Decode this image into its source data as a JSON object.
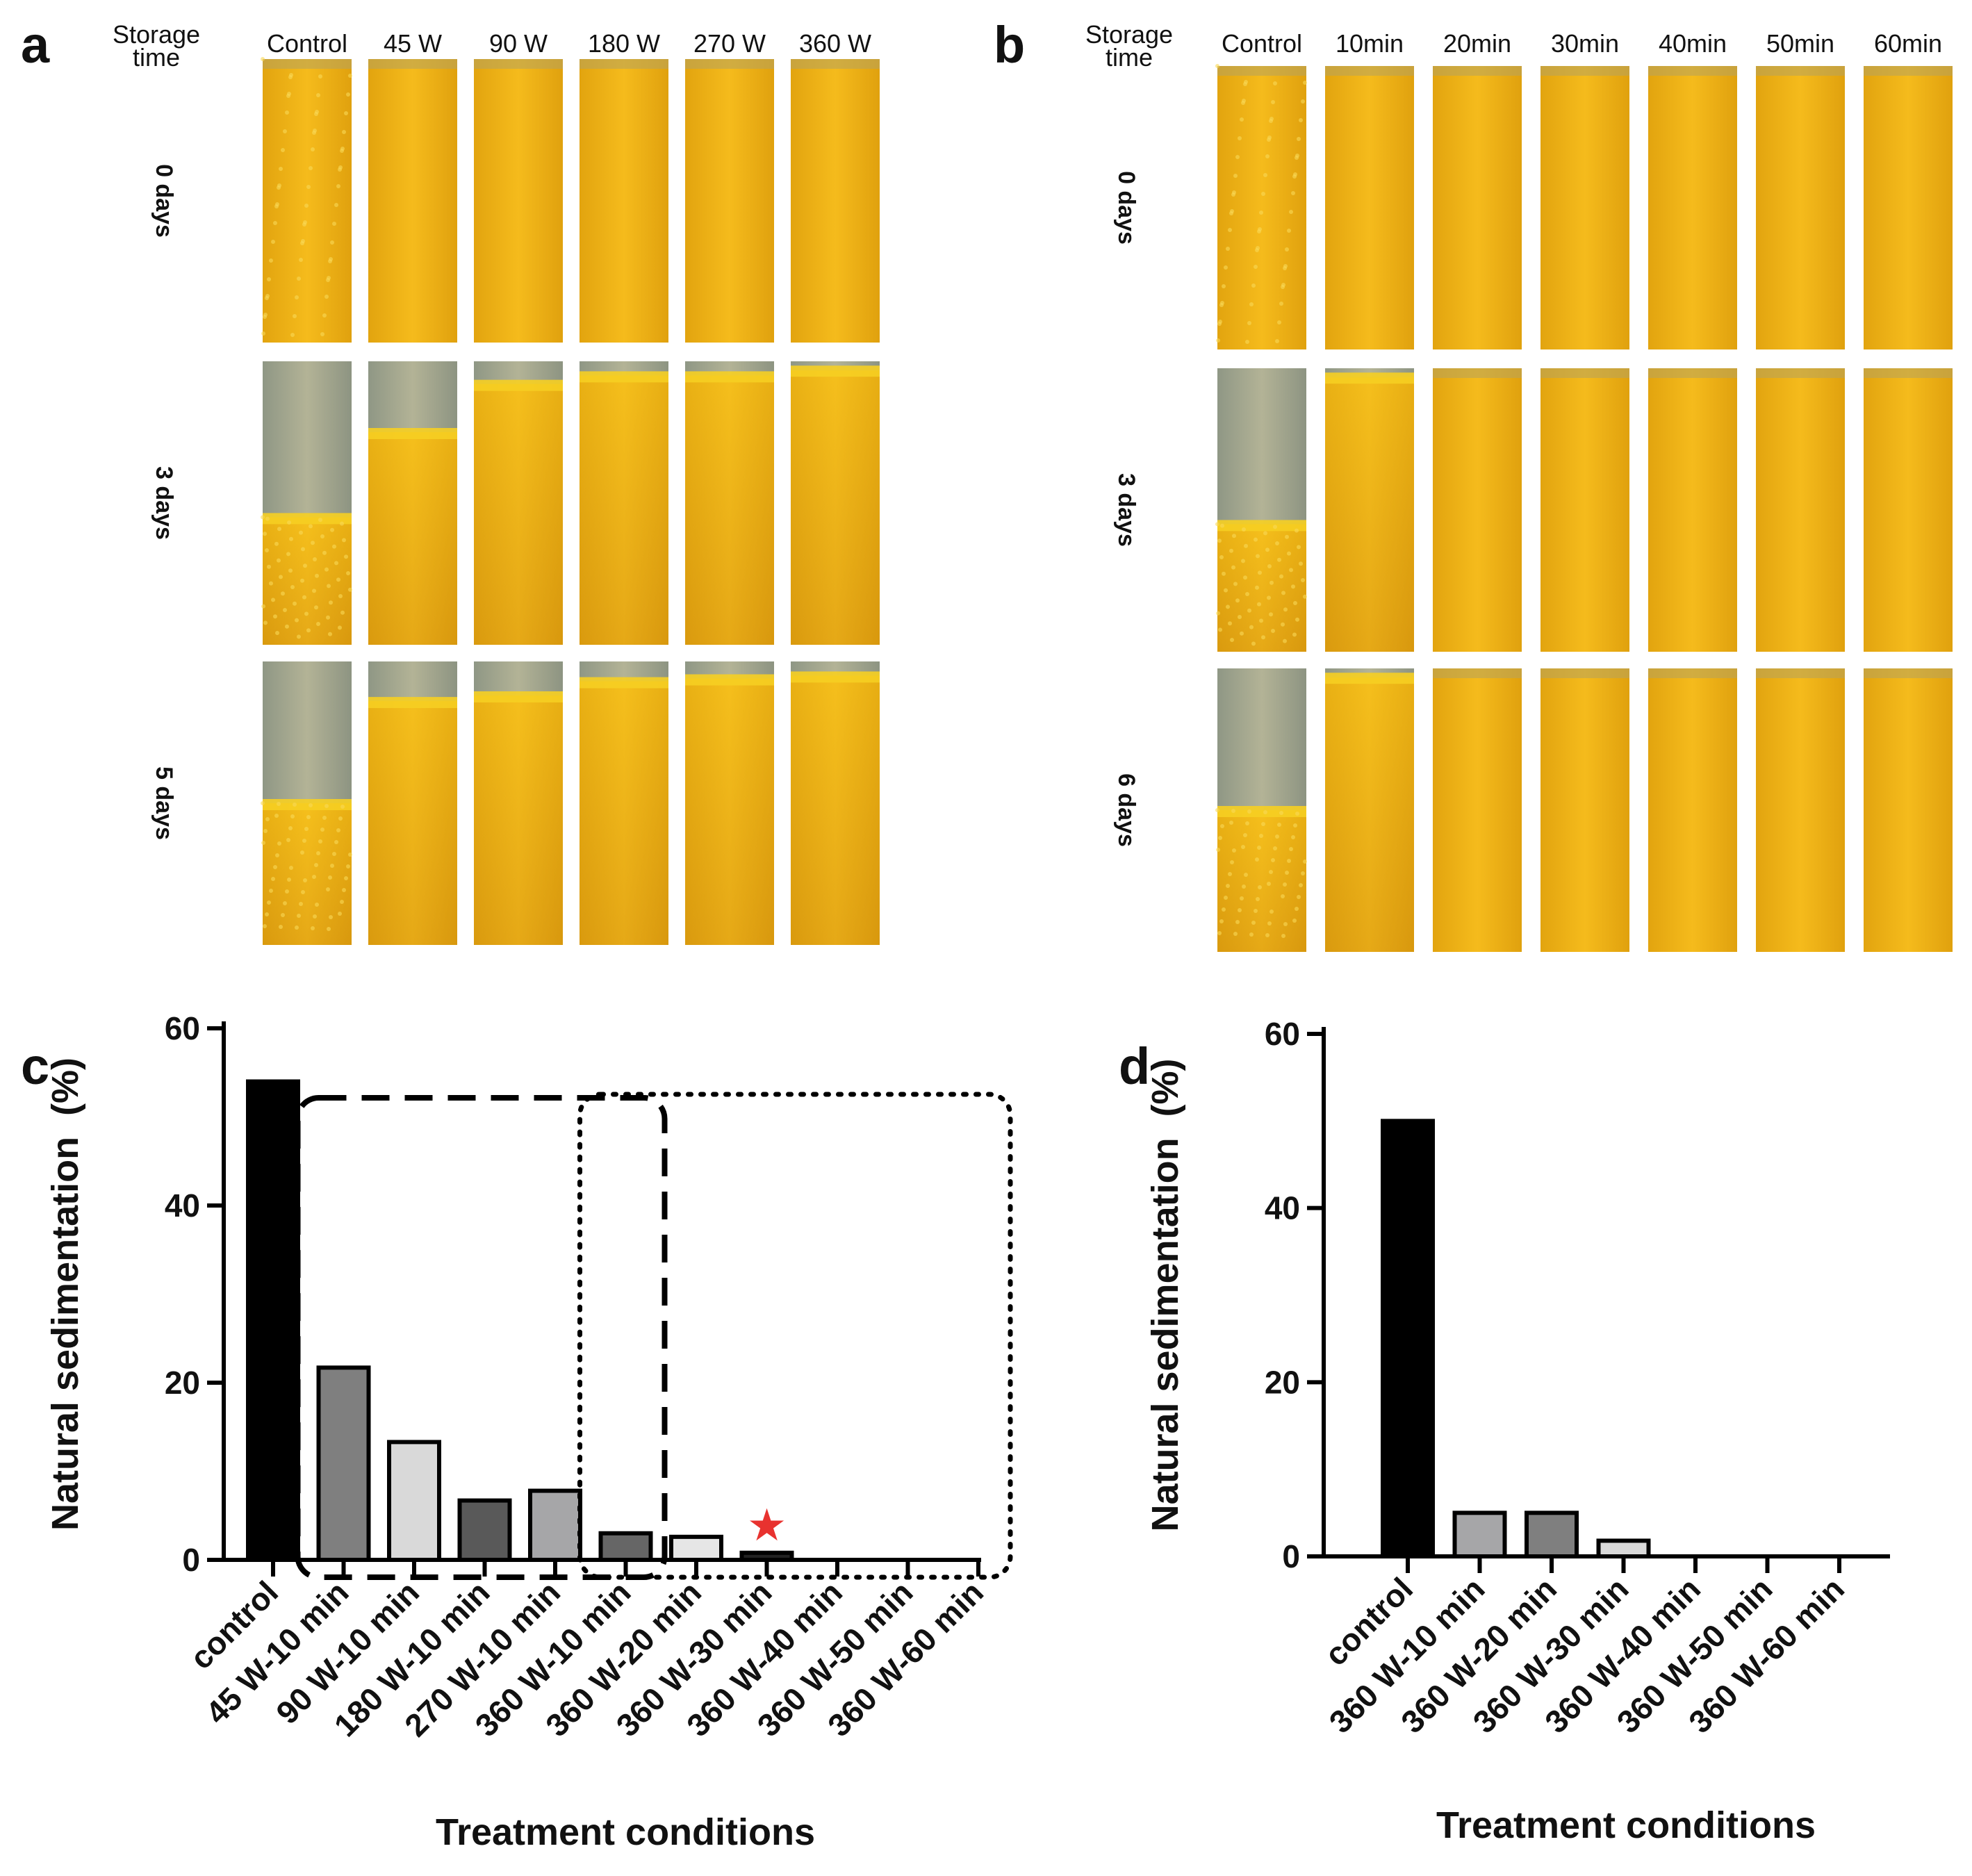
{
  "panels": {
    "a": {
      "label": "a",
      "corner_label": [
        "Storage",
        "time"
      ],
      "columns": [
        "Control",
        "45 W",
        "90 W",
        "180 W",
        "270 W",
        "360 W"
      ],
      "rows": [
        "0 days",
        "3 days",
        "5 days"
      ],
      "sediment_fraction": [
        [
          0,
          0,
          0,
          0,
          0,
          0
        ],
        [
          0.55,
          0.25,
          0.08,
          0.05,
          0.05,
          0.03
        ],
        [
          0.5,
          0.14,
          0.12,
          0.07,
          0.06,
          0.05
        ]
      ]
    },
    "b": {
      "label": "b",
      "corner_label": [
        "Storage",
        "time"
      ],
      "columns": [
        "Control",
        "10min",
        "20min",
        "30min",
        "40min",
        "50min",
        "60min"
      ],
      "rows": [
        "0 days",
        "3 days",
        "6 days"
      ],
      "sediment_fraction": [
        [
          0,
          0,
          0,
          0,
          0,
          0,
          0
        ],
        [
          0.55,
          0.03,
          0,
          0,
          0,
          0,
          0
        ],
        [
          0.5,
          0.03,
          0,
          0,
          0,
          0,
          0
        ]
      ]
    }
  },
  "colors": {
    "juice_light": "#f2b517",
    "juice_dark": "#d79a0c",
    "serum": "#9ea58e",
    "star": "#e8322f"
  },
  "chart_data": [
    {
      "panel": "c",
      "type": "bar",
      "title": "",
      "ylabel": "Natural sedimentation  (%)",
      "xlabel": "Treatment conditions",
      "ylim": [
        0,
        60
      ],
      "yticks": [
        0,
        20,
        40,
        60
      ],
      "categories": [
        "control",
        "45 W-10 min",
        "90 W-10 min",
        "180 W-10 min",
        "270 W-10 min",
        "360 W-10 min",
        "360 W-20 min",
        "360 W-30 min",
        "360 W-40 min",
        "360 W-50 min",
        "360 W-60 min"
      ],
      "values": [
        54,
        21.7,
        13.3,
        6.7,
        7.8,
        3.0,
        2.6,
        0.8,
        0,
        0,
        0
      ],
      "bar_colors": [
        "#000000",
        "#7f7f7f",
        "#d9d9d9",
        "#595959",
        "#a6a6a8",
        "#666666",
        "#e6e6e6",
        "#222222",
        "#222222",
        "#222222",
        "#222222"
      ],
      "highlight_boxes": [
        {
          "style": "dashed",
          "from_category": "45 W-10 min",
          "to_category": "360 W-10 min"
        },
        {
          "style": "dotted",
          "from_category": "360 W-10 min",
          "to_category": "360 W-60 min"
        }
      ],
      "marker": {
        "symbol": "★",
        "category": "360 W-30 min"
      }
    },
    {
      "panel": "d",
      "type": "bar",
      "title": "",
      "ylabel": "Natural sedimentation  (%)",
      "xlabel": "Treatment conditions",
      "ylim": [
        0,
        60
      ],
      "yticks": [
        0,
        20,
        40,
        60
      ],
      "categories": [
        "control",
        "360 W-10 min",
        "360 W-20 min",
        "360 W-30 min",
        "360 W-40 min",
        "360 W-50 min",
        "360 W-60 min"
      ],
      "values": [
        50,
        5,
        5,
        1.8,
        0,
        0,
        0
      ],
      "bar_colors": [
        "#000000",
        "#a6a6a8",
        "#7f7f7f",
        "#d9d9d9",
        "#222222",
        "#222222",
        "#222222"
      ]
    }
  ],
  "chart_labels": {
    "c": "c",
    "d": "d"
  }
}
